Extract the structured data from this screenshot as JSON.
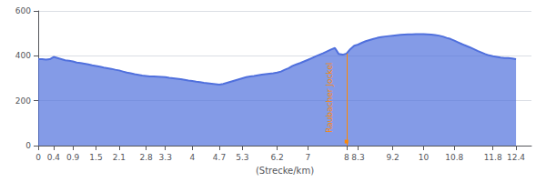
{
  "chart_data": {
    "type": "area",
    "xlabel": "(Strecke/km)",
    "x": [
      0,
      0.1,
      0.2,
      0.3,
      0.4,
      0.5,
      0.6,
      0.7,
      0.8,
      0.9,
      1.0,
      1.1,
      1.2,
      1.3,
      1.4,
      1.5,
      1.6,
      1.7,
      1.8,
      1.9,
      2.0,
      2.1,
      2.2,
      2.3,
      2.4,
      2.5,
      2.6,
      2.7,
      2.8,
      2.9,
      3.0,
      3.1,
      3.2,
      3.3,
      3.4,
      3.5,
      3.6,
      3.7,
      3.8,
      3.9,
      4.0,
      4.1,
      4.2,
      4.3,
      4.4,
      4.5,
      4.6,
      4.7,
      4.8,
      4.9,
      5.0,
      5.1,
      5.2,
      5.3,
      5.4,
      5.5,
      5.6,
      5.7,
      5.8,
      5.9,
      6.0,
      6.1,
      6.2,
      6.3,
      6.4,
      6.5,
      6.6,
      6.7,
      6.8,
      6.9,
      7.0,
      7.1,
      7.2,
      7.3,
      7.4,
      7.5,
      7.6,
      7.7,
      7.8,
      7.9,
      8.0,
      8.1,
      8.2,
      8.3,
      8.4,
      8.5,
      8.6,
      8.7,
      8.8,
      8.9,
      9.0,
      9.1,
      9.2,
      9.3,
      9.4,
      9.5,
      9.6,
      9.7,
      9.8,
      9.9,
      10.0,
      10.1,
      10.2,
      10.3,
      10.4,
      10.5,
      10.6,
      10.7,
      10.8,
      10.9,
      11.0,
      11.1,
      11.2,
      11.3,
      11.4,
      11.5,
      11.6,
      11.7,
      11.8,
      11.9,
      12.0,
      12.1,
      12.2,
      12.3,
      12.4
    ],
    "values": [
      385,
      385,
      383,
      385,
      395,
      390,
      385,
      380,
      378,
      375,
      370,
      368,
      365,
      362,
      358,
      355,
      352,
      348,
      345,
      342,
      338,
      335,
      330,
      325,
      322,
      318,
      315,
      312,
      310,
      308,
      308,
      307,
      306,
      305,
      302,
      300,
      298,
      296,
      293,
      290,
      288,
      285,
      283,
      280,
      278,
      276,
      274,
      272,
      275,
      280,
      285,
      290,
      295,
      300,
      305,
      308,
      310,
      313,
      316,
      318,
      320,
      322,
      325,
      330,
      338,
      345,
      355,
      362,
      368,
      375,
      382,
      390,
      398,
      405,
      412,
      420,
      428,
      435,
      408,
      405,
      410,
      430,
      445,
      450,
      458,
      465,
      470,
      475,
      480,
      483,
      486,
      488,
      490,
      492,
      494,
      495,
      496,
      496,
      497,
      497,
      497,
      496,
      495,
      493,
      490,
      486,
      480,
      475,
      468,
      460,
      452,
      445,
      438,
      430,
      422,
      415,
      408,
      402,
      398,
      395,
      392,
      390,
      390,
      388,
      385
    ],
    "xlim": [
      0,
      12.8
    ],
    "ylim": [
      0,
      600
    ],
    "xticks": [
      0,
      0.4,
      0.9,
      1.5,
      2.1,
      2.8,
      3.3,
      4,
      4.7,
      5.3,
      6.2,
      7,
      8,
      8.3,
      9.2,
      10,
      10.8,
      11.8,
      12.4
    ],
    "yticks": [
      0,
      200,
      400,
      600
    ],
    "grid": true,
    "annotations": [
      {
        "text": "Raubacher Jockel",
        "x": 8.0,
        "y": 410,
        "marker_y": 18,
        "color": "#ff8800"
      }
    ]
  }
}
